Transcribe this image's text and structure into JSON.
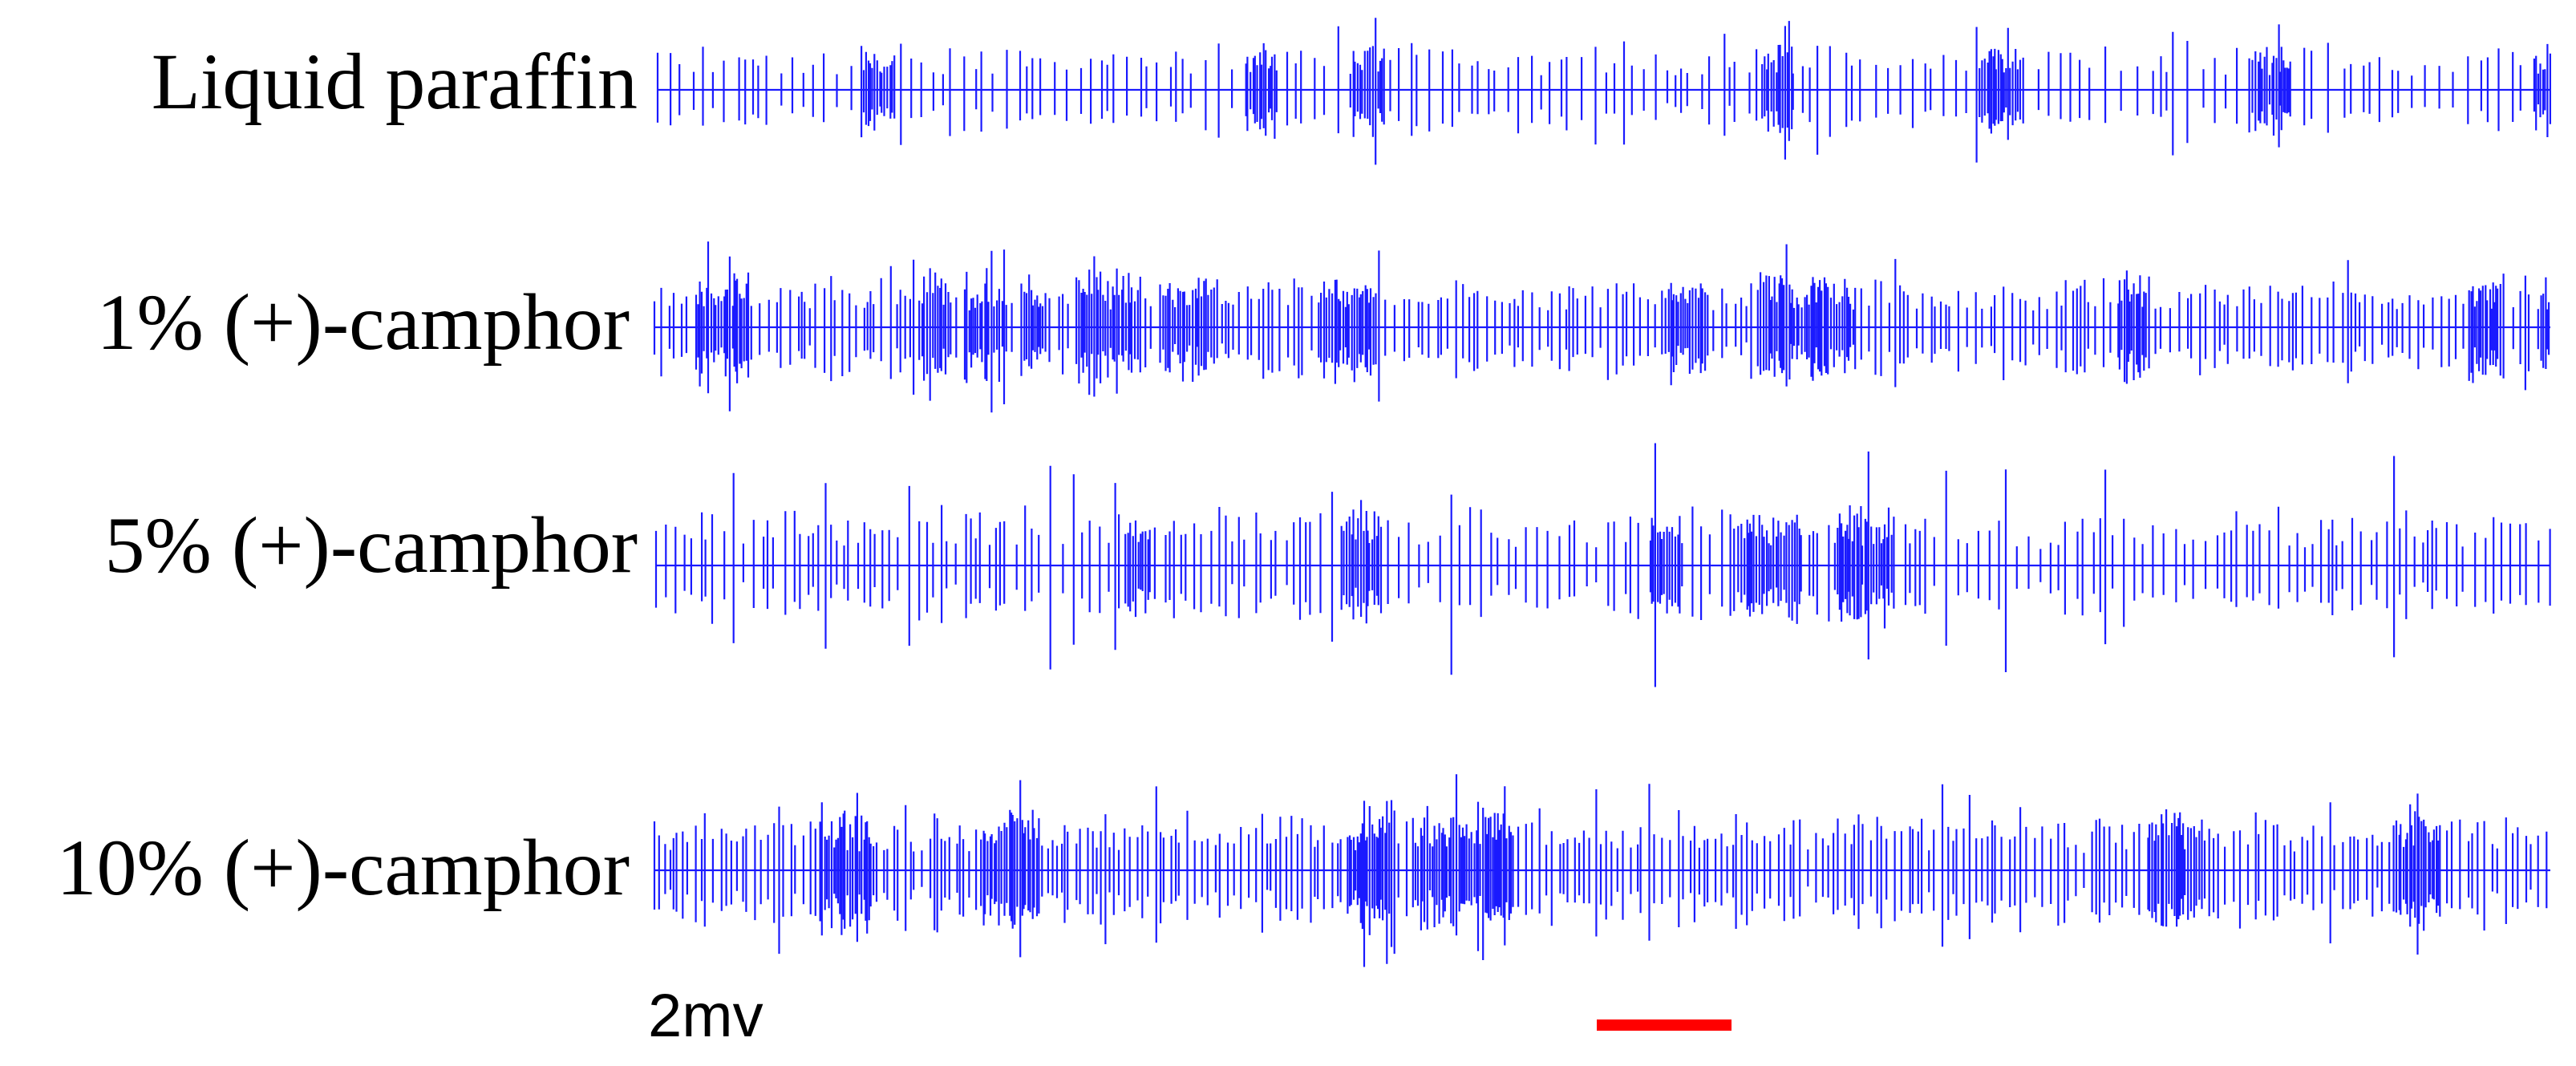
{
  "rows": [
    {
      "label": "Liquid paraffin"
    },
    {
      "label": "1% (+)-camphor"
    },
    {
      "label": "5% (+)-camphor"
    },
    {
      "label": "10% (+)-camphor"
    }
  ],
  "scale_label": "2mv"
}
